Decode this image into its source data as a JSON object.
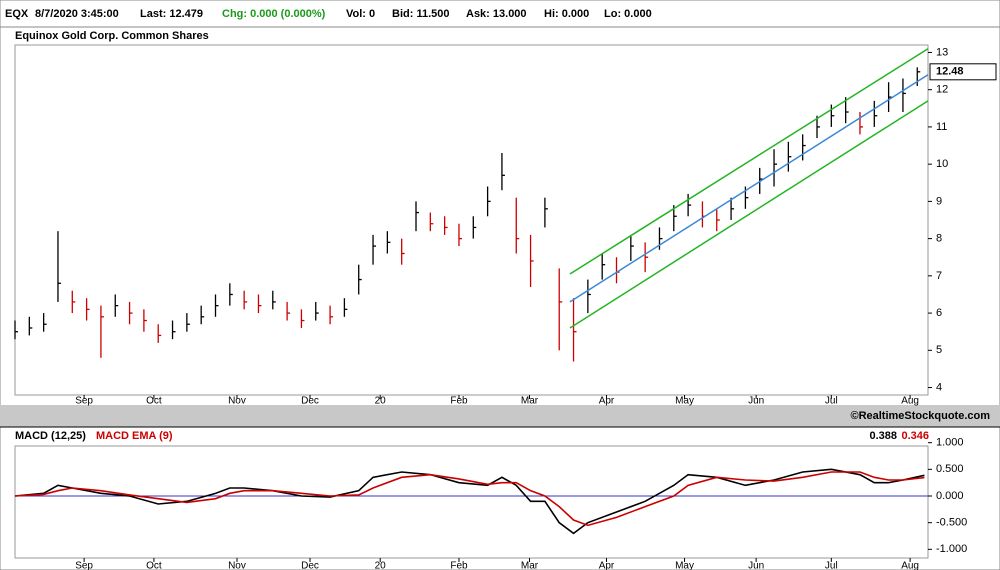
{
  "header": {
    "symbol": "EQX",
    "datetime": "8/7/2020 3:45:00",
    "last": "Last: 12.479",
    "change": "Chg: 0.000 (0.000%)",
    "volume": "Vol: 0",
    "bid": "Bid: 11.500",
    "ask": "Ask: 13.000",
    "high": "Hi: 0.000",
    "low": "Lo: 0.000"
  },
  "watermark": "©RealtimeStockquote.com",
  "chart_data": [
    {
      "type": "ohlc",
      "title": "Equinox Gold Corp. Common Shares",
      "x": [
        0,
        4,
        8,
        12,
        16,
        20,
        24,
        28,
        32,
        36,
        40,
        44,
        48,
        52,
        56,
        60,
        64,
        68,
        72,
        76,
        80,
        84,
        88,
        92,
        96,
        100,
        104,
        108,
        112,
        116,
        120,
        124,
        128,
        132,
        136,
        140,
        144,
        148,
        152,
        156,
        160,
        164,
        168,
        172,
        176,
        180,
        184,
        188,
        192,
        196,
        200,
        204,
        208,
        212,
        216,
        220,
        224,
        228,
        232,
        236,
        240,
        244,
        248,
        252
      ],
      "high": [
        5.8,
        5.9,
        6.0,
        8.2,
        6.6,
        6.4,
        6.2,
        6.5,
        6.3,
        6.1,
        5.7,
        5.8,
        6.0,
        6.2,
        6.5,
        6.8,
        6.6,
        6.5,
        6.6,
        6.3,
        6.1,
        6.3,
        6.2,
        6.4,
        7.3,
        8.1,
        8.2,
        8.0,
        9.0,
        8.7,
        8.6,
        8.4,
        8.6,
        9.4,
        10.3,
        9.1,
        8.1,
        9.1,
        7.2,
        6.4,
        6.9,
        7.6,
        7.5,
        8.1,
        7.9,
        8.3,
        8.9,
        9.2,
        9.0,
        8.8,
        9.1,
        9.4,
        9.9,
        10.4,
        10.6,
        10.8,
        11.3,
        11.6,
        11.8,
        11.4,
        11.7,
        12.2,
        12.3,
        12.6
      ],
      "low": [
        5.3,
        5.4,
        5.5,
        6.3,
        6.0,
        5.8,
        4.8,
        5.9,
        5.7,
        5.5,
        5.2,
        5.3,
        5.5,
        5.7,
        5.9,
        6.2,
        6.1,
        6.0,
        6.1,
        5.8,
        5.6,
        5.8,
        5.7,
        5.9,
        6.5,
        7.3,
        7.6,
        7.3,
        8.2,
        8.2,
        8.1,
        7.8,
        8.0,
        8.6,
        9.3,
        7.6,
        6.7,
        8.3,
        5.0,
        4.7,
        6.0,
        6.9,
        6.8,
        7.4,
        7.1,
        7.7,
        8.2,
        8.6,
        8.3,
        8.2,
        8.5,
        8.8,
        9.2,
        9.4,
        9.8,
        10.1,
        10.7,
        11.0,
        11.1,
        10.8,
        11.0,
        11.4,
        11.4,
        12.1
      ],
      "close": [
        5.5,
        5.6,
        5.7,
        6.8,
        6.3,
        6.1,
        5.9,
        6.2,
        6.0,
        5.8,
        5.4,
        5.5,
        5.7,
        5.9,
        6.2,
        6.5,
        6.3,
        6.2,
        6.3,
        6.0,
        5.8,
        6.0,
        5.9,
        6.1,
        6.9,
        7.8,
        7.9,
        7.6,
        8.7,
        8.4,
        8.3,
        8.0,
        8.3,
        9.0,
        9.7,
        8.0,
        7.4,
        8.8,
        6.3,
        5.5,
        6.5,
        7.3,
        7.1,
        7.8,
        7.5,
        8.0,
        8.6,
        8.9,
        8.6,
        8.5,
        8.8,
        9.1,
        9.6,
        10.0,
        10.2,
        10.5,
        11.0,
        11.3,
        11.4,
        11.0,
        11.3,
        11.8,
        11.9,
        12.48
      ],
      "up_color": "#000000",
      "down_color": "#cc0000",
      "channel": {
        "x": [
          155,
          255
        ],
        "upper": [
          7.05,
          13.1
        ],
        "middle": [
          6.3,
          12.4
        ],
        "lower": [
          5.6,
          11.7
        ],
        "band_color": "#22b522",
        "middle_color": "#3a88d8"
      },
      "last_value": 12.48,
      "xlim": [
        0,
        255
      ],
      "ylim": [
        3.8,
        13.2
      ],
      "yticks": [
        4,
        5,
        6,
        7,
        8,
        9,
        10,
        11,
        12,
        13
      ],
      "xticks": [
        {
          "value": 19.3,
          "label": "Sep"
        },
        {
          "value": 38.8,
          "label": "Oct"
        },
        {
          "value": 62,
          "label": "Nov"
        },
        {
          "value": 82.4,
          "label": "Dec"
        },
        {
          "value": 102,
          "label": "20"
        },
        {
          "value": 124,
          "label": "Feb"
        },
        {
          "value": 143.7,
          "label": "Mar"
        },
        {
          "value": 165.2,
          "label": "Apr"
        },
        {
          "value": 187,
          "label": "May"
        },
        {
          "value": 207,
          "label": "Jun"
        },
        {
          "value": 228,
          "label": "Jul"
        },
        {
          "value": 250,
          "label": "Aug"
        }
      ]
    },
    {
      "type": "line",
      "x": [
        0,
        8,
        12,
        16,
        24,
        32,
        40,
        48,
        56,
        60,
        64,
        72,
        80,
        88,
        96,
        100,
        108,
        116,
        124,
        132,
        136,
        140,
        144,
        148,
        152,
        156,
        160,
        168,
        176,
        184,
        188,
        196,
        204,
        212,
        220,
        228,
        236,
        240,
        244,
        248,
        254
      ],
      "series": [
        {
          "name": "MACD (12,25)",
          "color": "#000000",
          "values": [
            0,
            0.05,
            0.2,
            0.15,
            0.05,
            0.0,
            -0.15,
            -0.1,
            0.05,
            0.15,
            0.15,
            0.1,
            0.0,
            -0.02,
            0.1,
            0.35,
            0.45,
            0.4,
            0.25,
            0.2,
            0.35,
            0.2,
            -0.1,
            -0.1,
            -0.5,
            -0.7,
            -0.5,
            -0.3,
            -0.1,
            0.2,
            0.4,
            0.35,
            0.2,
            0.3,
            0.45,
            0.5,
            0.4,
            0.25,
            0.25,
            0.3,
            0.388
          ]
        },
        {
          "name": "MACD EMA (9)",
          "color": "#cc0000",
          "values": [
            0,
            0.03,
            0.1,
            0.15,
            0.1,
            0.02,
            -0.05,
            -0.12,
            -0.05,
            0.05,
            0.1,
            0.1,
            0.05,
            0.0,
            0.02,
            0.15,
            0.35,
            0.4,
            0.32,
            0.22,
            0.25,
            0.25,
            0.1,
            0.0,
            -0.2,
            -0.45,
            -0.55,
            -0.4,
            -0.2,
            0.0,
            0.2,
            0.35,
            0.3,
            0.28,
            0.35,
            0.45,
            0.45,
            0.35,
            0.3,
            0.3,
            0.346
          ]
        }
      ],
      "last_values": [
        0.388,
        0.346
      ],
      "zero_color": "#3333cc",
      "xlim": [
        0,
        255
      ],
      "ylim": [
        -1.2,
        1.2
      ],
      "yticks": [
        {
          "value": 1,
          "label": "1.000"
        },
        {
          "value": 0.5,
          "label": "0.500"
        },
        {
          "value": 0,
          "label": "0.000"
        },
        {
          "value": -0.5,
          "label": "-0.500"
        },
        {
          "value": -1,
          "label": "-1.000"
        }
      ],
      "xticks": [
        {
          "value": 19.3,
          "label": "Sep"
        },
        {
          "value": 38.8,
          "label": "Oct"
        },
        {
          "value": 62,
          "label": "Nov"
        },
        {
          "value": 82.4,
          "label": "Dec"
        },
        {
          "value": 102,
          "label": "20"
        },
        {
          "value": 124,
          "label": "Feb"
        },
        {
          "value": 143.7,
          "label": "Mar"
        },
        {
          "value": 165.2,
          "label": "Apr"
        },
        {
          "value": 187,
          "label": "May"
        },
        {
          "value": 207,
          "label": "Jun"
        },
        {
          "value": 228,
          "label": "Jul"
        },
        {
          "value": 250,
          "label": "Aug"
        }
      ]
    }
  ]
}
